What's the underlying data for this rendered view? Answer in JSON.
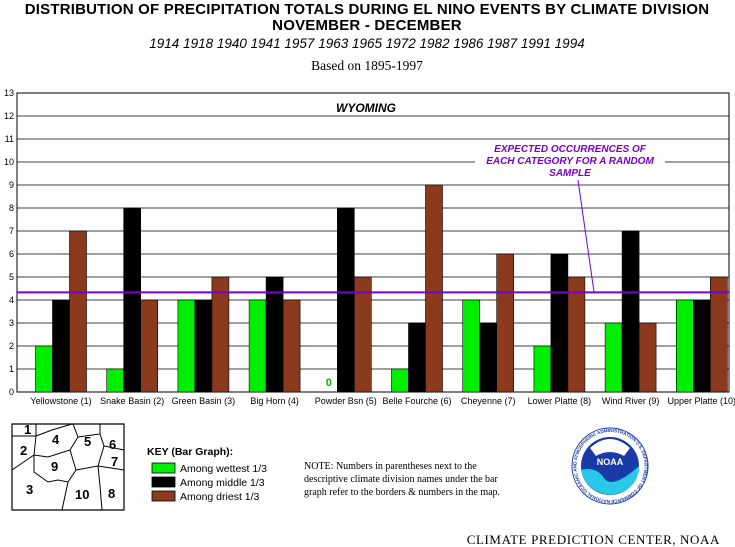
{
  "header": {
    "title_line1": "DISTRIBUTION OF PRECIPITATION TOTALS DURING EL NINO EVENTS BY CLIMATE DIVISION",
    "title_line2": "NOVEMBER - DECEMBER",
    "years": "1914  1918  1940  1941  1957  1963  1965  1972  1982  1986  1987  1991  1994",
    "based_on": "Based on 1895-1997"
  },
  "chart_data": {
    "type": "bar",
    "region_label": "WYOMING",
    "categories": [
      "Yellowstone (1)",
      "Snake Basin (2)",
      "Green Basin (3)",
      "Big Horn (4)",
      "Powder Bsn (5)",
      "Belle Fourche (6)",
      "Cheyenne (7)",
      "Lower Platte (8)",
      "Wind River (9)",
      "Upper Platte (10)"
    ],
    "series": [
      {
        "name": "Among wettest 1/3",
        "color": "#00ee00",
        "values": [
          2,
          1,
          4,
          4,
          0,
          1,
          4,
          2,
          3,
          4
        ]
      },
      {
        "name": "Among middle 1/3",
        "color": "#000000",
        "values": [
          4,
          8,
          4,
          5,
          8,
          3,
          3,
          6,
          7,
          4
        ]
      },
      {
        "name": "Among driest 1/3",
        "color": "#8b3a1e",
        "values": [
          7,
          4,
          5,
          4,
          5,
          9,
          6,
          5,
          3,
          5
        ]
      }
    ],
    "ylim": [
      0,
      13
    ],
    "yticks": [
      0,
      1,
      2,
      3,
      4,
      5,
      6,
      7,
      8,
      9,
      10,
      11,
      12,
      13
    ],
    "grid": true,
    "expected_value": 4.33,
    "expected_color": "#7a00c8",
    "expected_label": [
      "EXPECTED OCCURRENCES OF",
      "EACH CATEGORY FOR A RANDOM",
      "SAMPLE"
    ],
    "zero_label": "0"
  },
  "key": {
    "heading": "KEY (Bar Graph):",
    "items": [
      {
        "label": "Among wettest 1/3",
        "color": "#00ee00"
      },
      {
        "label": "Among middle 1/3",
        "color": "#000000"
      },
      {
        "label": "Among driest 1/3",
        "color": "#8b3a1e"
      }
    ]
  },
  "note": {
    "lines": [
      "NOTE:   Numbers in parentheses next to the",
      "descriptive climate division names under the bar",
      "graph refer to the borders & numbers in the map."
    ]
  },
  "map": {
    "numbers": [
      "1",
      "2",
      "3",
      "4",
      "5",
      "6",
      "7",
      "8",
      "9",
      "10"
    ]
  },
  "logo": {
    "name": "NOAA",
    "ring_text": "NATIONAL OCEANIC AND ATMOSPHERIC ADMINISTRATION U.S. DEPARTMENT OF COMMERCE"
  },
  "credit": "CLIMATE PREDICTION CENTER, NOAA"
}
